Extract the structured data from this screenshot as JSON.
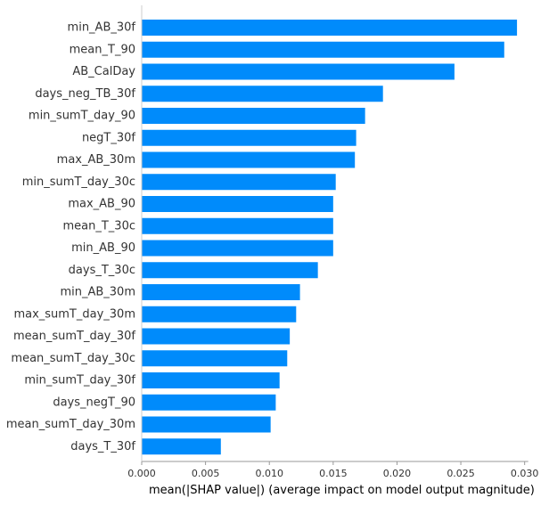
{
  "chart_data": {
    "type": "bar",
    "orientation": "horizontal",
    "title": "",
    "xlabel": "mean(|SHAP value|) (average impact on model output magnitude)",
    "ylabel": "",
    "xlim": [
      0,
      0.031
    ],
    "x_ticks": [
      0.0,
      0.005,
      0.01,
      0.015,
      0.02,
      0.025,
      0.03
    ],
    "x_tick_labels": [
      "0.000",
      "0.005",
      "0.010",
      "0.015",
      "0.020",
      "0.025",
      "0.030"
    ],
    "grid": false,
    "legend": "none",
    "bar_color": "#008bfb",
    "axis_color": "#999999",
    "categories": [
      "min_AB_30f",
      "mean_T_90",
      "AB_CalDay",
      "days_neg_TB_30f",
      "min_sumT_day_90",
      "negT_30f",
      "max_AB_30m",
      "min_sumT_day_30c",
      "max_AB_90",
      "mean_T_30c",
      "min_AB_90",
      "days_T_30c",
      "min_AB_30m",
      "max_sumT_day_30m",
      "mean_sumT_day_30f",
      "mean_sumT_day_30c",
      "min_sumT_day_30f",
      "days_negT_90",
      "mean_sumT_day_30m",
      "days_T_30f"
    ],
    "values": [
      0.0294,
      0.0284,
      0.0245,
      0.0189,
      0.0175,
      0.0168,
      0.0167,
      0.0152,
      0.015,
      0.015,
      0.015,
      0.0138,
      0.0124,
      0.0121,
      0.0116,
      0.0114,
      0.0108,
      0.0105,
      0.0101,
      0.0062
    ]
  }
}
